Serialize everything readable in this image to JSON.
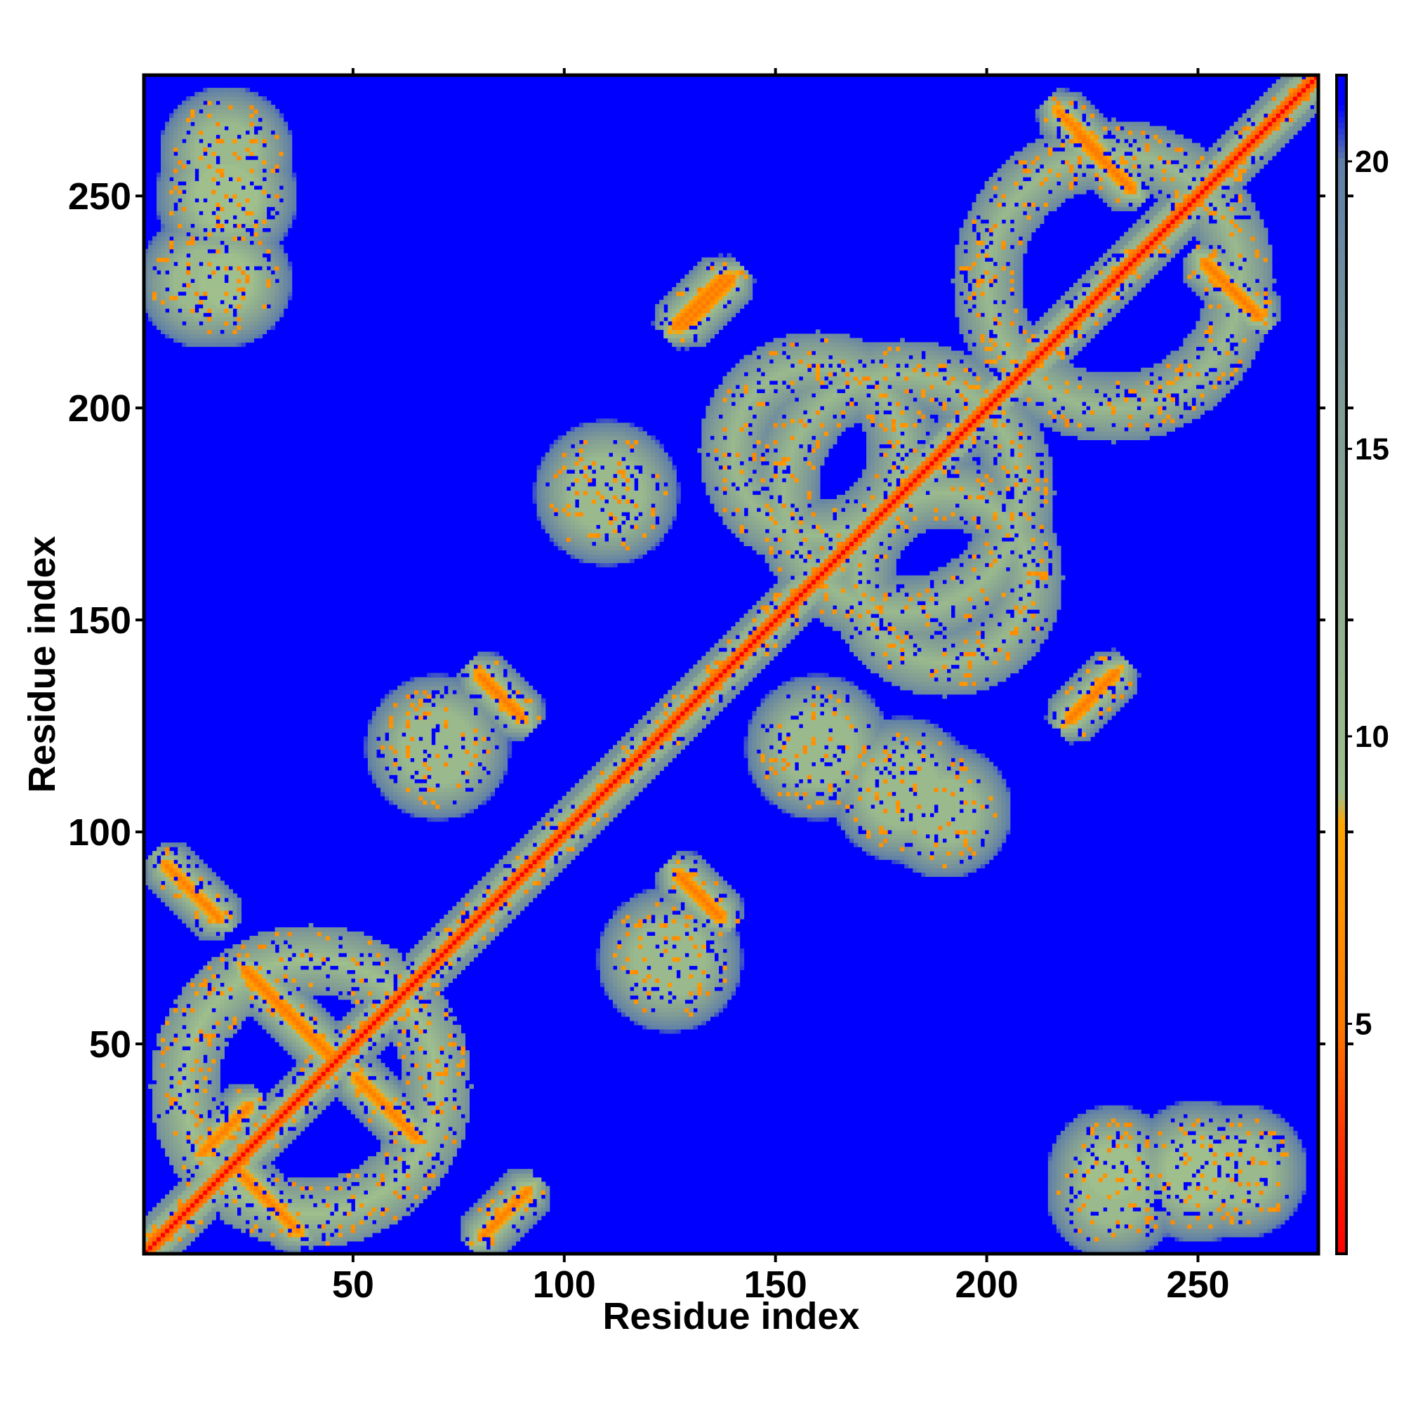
{
  "chart_data": {
    "type": "heatmap",
    "title": "",
    "xlabel": "Residue index",
    "ylabel": "Residue index",
    "xlim": [
      1,
      278
    ],
    "ylim": [
      1,
      278
    ],
    "xticks": [
      50,
      100,
      150,
      200,
      250
    ],
    "yticks": [
      50,
      100,
      150,
      200,
      250
    ],
    "colorbar": {
      "range": [
        1,
        21.5
      ],
      "ticks": [
        5,
        10,
        15,
        20
      ],
      "colors": {
        "close": "#ff0000",
        "contact": "#ffa500",
        "near": "#8fbc8f",
        "mid": "#7f9a96",
        "far": "#0000ff"
      },
      "stops": [
        {
          "value": 1,
          "color": "#ff0000"
        },
        {
          "value": 3,
          "color": "#ff3300"
        },
        {
          "value": 5,
          "color": "#ff7a00"
        },
        {
          "value": 8.5,
          "color": "#ffa500"
        },
        {
          "value": 9,
          "color": "#9fbf8c"
        },
        {
          "value": 13,
          "color": "#8caa90"
        },
        {
          "value": 16,
          "color": "#7f9a96"
        },
        {
          "value": 20,
          "color": "#5f7fa8"
        },
        {
          "value": 21,
          "color": "#0000ff"
        }
      ]
    },
    "description_values": {
      "diagonal_distance": 3.8,
      "background_distance": 21.5
    },
    "contact_features": [
      {
        "kind": "diagonal",
        "from": 1,
        "to": 278,
        "distance": 3.8,
        "width": 8
      },
      {
        "kind": "antiparallel",
        "center": [
          12,
          86
        ],
        "length": 18,
        "distance": 5.5
      },
      {
        "kind": "antiparallel",
        "center": [
          35,
          57
        ],
        "length": 30,
        "distance": 5.0
      },
      {
        "kind": "antiparallel",
        "center": [
          30,
          13
        ],
        "length": 20,
        "distance": 5.5
      },
      {
        "kind": "parallel",
        "center": [
          20,
          30
        ],
        "length": 16,
        "distance": 5.5
      },
      {
        "kind": "antiparallel",
        "center": [
          58,
          35
        ],
        "length": 20,
        "distance": 5.5
      },
      {
        "kind": "parallel",
        "center": [
          86,
          10
        ],
        "length": 16,
        "distance": 5.5
      },
      {
        "kind": "antiparallel",
        "center": [
          85,
          132
        ],
        "length": 14,
        "distance": 5.0
      },
      {
        "kind": "antiparallel",
        "center": [
          132,
          85
        ],
        "length": 14,
        "distance": 5.0
      },
      {
        "kind": "parallel",
        "center": [
          225,
          132
        ],
        "length": 16,
        "distance": 5.0
      },
      {
        "kind": "parallel",
        "center": [
          132,
          225
        ],
        "length": 16,
        "distance": 5.0
      },
      {
        "kind": "parallel",
        "center": [
          134,
          225
        ],
        "length": 16,
        "distance": 5.0
      },
      {
        "kind": "antiparallel",
        "center": [
          258,
          228
        ],
        "length": 18,
        "distance": 5.0
      },
      {
        "kind": "antiparallel",
        "center": [
          228,
          258
        ],
        "length": 18,
        "distance": 5.0
      },
      {
        "kind": "antiparallel",
        "center": [
          222,
          265
        ],
        "length": 14,
        "distance": 5.5
      },
      {
        "kind": "blob",
        "center": [
          20,
          250
        ],
        "radius": 12,
        "distance": 9
      },
      {
        "kind": "blob",
        "center": [
          20,
          230
        ],
        "radius": 10,
        "distance": 9
      },
      {
        "kind": "blob",
        "center": [
          250,
          20
        ],
        "radius": 12,
        "distance": 9
      },
      {
        "kind": "blob",
        "center": [
          230,
          20
        ],
        "radius": 10,
        "distance": 9
      },
      {
        "kind": "blob",
        "center": [
          110,
          180
        ],
        "radius": 14,
        "distance": 10
      },
      {
        "kind": "blob",
        "center": [
          180,
          110
        ],
        "radius": 14,
        "distance": 10
      },
      {
        "kind": "blob",
        "center": [
          160,
          120
        ],
        "radius": 14,
        "distance": 10
      },
      {
        "kind": "blob",
        "center": [
          190,
          105
        ],
        "radius": 12,
        "distance": 10
      },
      {
        "kind": "blob",
        "center": [
          125,
          70
        ],
        "radius": 14,
        "distance": 10
      },
      {
        "kind": "blob",
        "center": [
          70,
          120
        ],
        "radius": 14,
        "distance": 10
      },
      {
        "kind": "blob",
        "center": [
          260,
          20
        ],
        "radius": 12,
        "distance": 10
      },
      {
        "kind": "blob",
        "center": [
          20,
          260
        ],
        "radius": 12,
        "distance": 10
      },
      {
        "kind": "blob",
        "center": [
          230,
          15
        ],
        "radius": 12,
        "distance": 10
      },
      {
        "kind": "blob",
        "center": [
          15,
          230
        ],
        "radius": 12,
        "distance": 10
      },
      {
        "kind": "ring",
        "center": [
          180,
          180
        ],
        "radius": 28,
        "distance": 10
      },
      {
        "kind": "ring",
        "center": [
          230,
          230
        ],
        "radius": 30,
        "distance": 10
      },
      {
        "kind": "ring",
        "center": [
          40,
          40
        ],
        "radius": 30,
        "distance": 9
      },
      {
        "kind": "ring",
        "center": [
          160,
          190
        ],
        "radius": 20,
        "distance": 10
      },
      {
        "kind": "ring",
        "center": [
          190,
          160
        ],
        "radius": 20,
        "distance": 10
      }
    ]
  }
}
